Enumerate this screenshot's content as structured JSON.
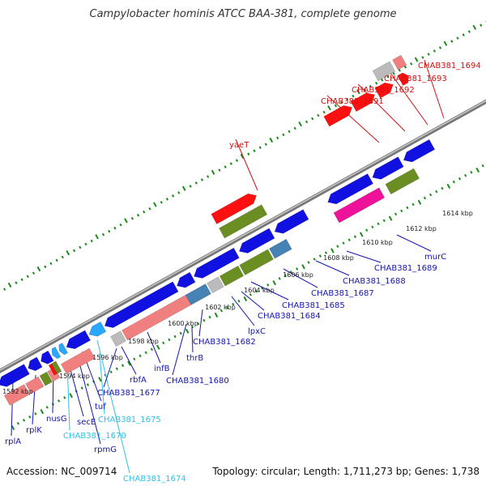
{
  "title": "Campylobacter hominis ATCC BAA-381, complete genome",
  "footer": {
    "accession": "Accession: NC_009714",
    "summary": "Topology: circular; Length: 1,711,273 bp; Genes: 1,738"
  },
  "colors": {
    "backbone": "#8c8c8c",
    "tick": "#1a8a1a",
    "cds_blue": "#1010e0",
    "rrna_pink": "#f08080",
    "trna_cyan": "#2aa8ff",
    "olive": "#6b8e23",
    "red": "#ff1010",
    "magenta": "#ee1199",
    "steel": "#4682b4",
    "gray": "#bbbbbb",
    "label_blue": "#1515b0",
    "label_red": "#d01010",
    "label_cyan": "#30c0e8"
  },
  "scale_labels": [
    "1592 kbp",
    "1594 kbp",
    "1596 kbp",
    "1598 kbp",
    "1600 kbp",
    "1602 kbp",
    "1604 kbp",
    "1606 kbp",
    "1608 kbp",
    "1610 kbp",
    "1612 kbp",
    "1614 kbp"
  ],
  "gene_labels": [
    {
      "text": "rplA",
      "color": "blue"
    },
    {
      "text": "rplK",
      "color": "blue"
    },
    {
      "text": "nusG",
      "color": "blue"
    },
    {
      "text": "secE",
      "color": "blue"
    },
    {
      "text": "CHAB381_1670",
      "color": "cyan"
    },
    {
      "text": "rpmG",
      "color": "blue"
    },
    {
      "text": "tuf",
      "color": "blue"
    },
    {
      "text": "CHAB381_1674",
      "color": "cyan"
    },
    {
      "text": "CHAB381_1675",
      "color": "cyan"
    },
    {
      "text": "CHAB381_1677",
      "color": "blue"
    },
    {
      "text": "rbfA",
      "color": "blue"
    },
    {
      "text": "infB",
      "color": "blue"
    },
    {
      "text": "CHAB381_1680",
      "color": "blue"
    },
    {
      "text": "thrB",
      "color": "blue"
    },
    {
      "text": "CHAB381_1682",
      "color": "blue"
    },
    {
      "text": "lpxC",
      "color": "blue"
    },
    {
      "text": "CHAB381_1684",
      "color": "blue"
    },
    {
      "text": "CHAB381_1685",
      "color": "blue"
    },
    {
      "text": "CHAB381_1687",
      "color": "blue"
    },
    {
      "text": "CHAB381_1688",
      "color": "blue"
    },
    {
      "text": "CHAB381_1689",
      "color": "blue"
    },
    {
      "text": "murC",
      "color": "blue"
    },
    {
      "text": "yaeT",
      "color": "red"
    },
    {
      "text": "CHAB381_1691",
      "color": "red"
    },
    {
      "text": "CHAB381_1692",
      "color": "red"
    },
    {
      "text": "CHAB381_1693",
      "color": "red"
    },
    {
      "text": "CHAB381_1694",
      "color": "red"
    }
  ]
}
